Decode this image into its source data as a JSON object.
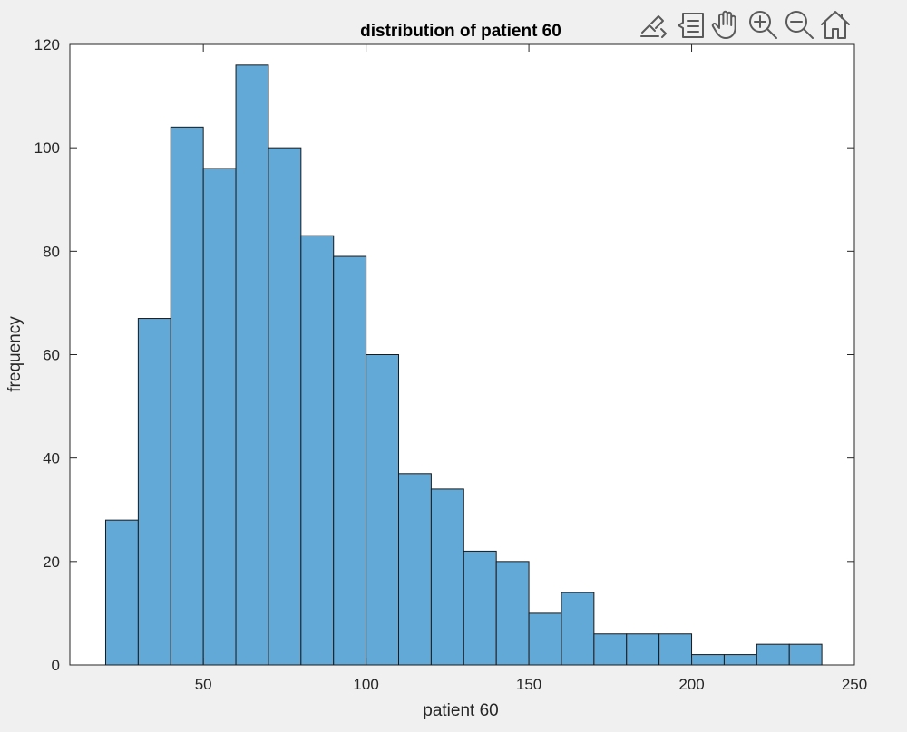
{
  "toolbar": {
    "icons": [
      "brush-data-icon",
      "data-tips-icon",
      "pan-hand-icon",
      "zoom-in-icon",
      "zoom-out-icon",
      "restore-view-home-icon"
    ]
  },
  "chart_data": {
    "type": "bar",
    "title": "distribution of patient 60",
    "xlabel": "patient 60",
    "ylabel": "frequency",
    "bin_edges": [
      20,
      30,
      40,
      50,
      60,
      70,
      80,
      90,
      100,
      110,
      120,
      130,
      140,
      150,
      160,
      170,
      180,
      190,
      200,
      210,
      220,
      230,
      240
    ],
    "values": [
      28,
      67,
      104,
      96,
      116,
      100,
      83,
      79,
      60,
      37,
      34,
      22,
      20,
      10,
      14,
      6,
      6,
      6,
      2,
      2,
      4,
      4
    ],
    "xlim": [
      9,
      250
    ],
    "ylim": [
      0,
      120
    ],
    "xticks": [
      50,
      100,
      150,
      200,
      250
    ],
    "yticks": [
      0,
      20,
      40,
      60,
      80,
      100,
      120
    ],
    "grid": false,
    "bar_color": "#63a9d8",
    "edge_color": "#1a1a1a"
  }
}
